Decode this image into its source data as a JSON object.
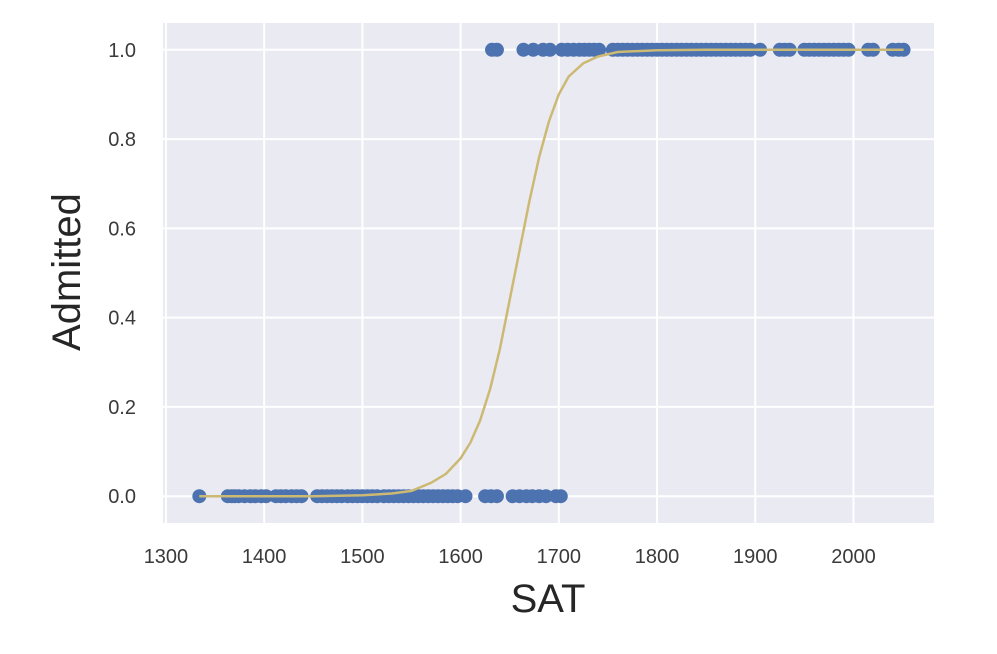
{
  "chart_data": {
    "type": "scatter",
    "title": "",
    "xlabel": "SAT",
    "ylabel": "Admitted",
    "xlim": [
      1297,
      2082
    ],
    "ylim": [
      -0.06,
      1.06
    ],
    "xticks": [
      "1300",
      "1400",
      "1500",
      "1600",
      "1700",
      "1800",
      "1900",
      "2000"
    ],
    "yticks": [
      "0.0",
      "0.2",
      "0.4",
      "0.6",
      "0.8",
      "1.0"
    ],
    "grid": true,
    "background": "#eaeaf2",
    "grid_color": "#ffffff",
    "series": [
      {
        "kind": "scatter",
        "color": "#4c72b0",
        "points": [
          {
            "x": 1334,
            "y": 0
          },
          {
            "x": 1363,
            "y": 0
          },
          {
            "x": 1367,
            "y": 0
          },
          {
            "x": 1370,
            "y": 0
          },
          {
            "x": 1374,
            "y": 0
          },
          {
            "x": 1380,
            "y": 0
          },
          {
            "x": 1386,
            "y": 0
          },
          {
            "x": 1391,
            "y": 0
          },
          {
            "x": 1397,
            "y": 0
          },
          {
            "x": 1402,
            "y": 0
          },
          {
            "x": 1412,
            "y": 0
          },
          {
            "x": 1417,
            "y": 0
          },
          {
            "x": 1422,
            "y": 0
          },
          {
            "x": 1428,
            "y": 0
          },
          {
            "x": 1433,
            "y": 0
          },
          {
            "x": 1438,
            "y": 0
          },
          {
            "x": 1454,
            "y": 0
          },
          {
            "x": 1459,
            "y": 0
          },
          {
            "x": 1464,
            "y": 0
          },
          {
            "x": 1469,
            "y": 0
          },
          {
            "x": 1474,
            "y": 0
          },
          {
            "x": 1479,
            "y": 0
          },
          {
            "x": 1485,
            "y": 0
          },
          {
            "x": 1490,
            "y": 0
          },
          {
            "x": 1495,
            "y": 0
          },
          {
            "x": 1500,
            "y": 0
          },
          {
            "x": 1505,
            "y": 0
          },
          {
            "x": 1510,
            "y": 0
          },
          {
            "x": 1515,
            "y": 0
          },
          {
            "x": 1522,
            "y": 0
          },
          {
            "x": 1527,
            "y": 0
          },
          {
            "x": 1532,
            "y": 0
          },
          {
            "x": 1537,
            "y": 0
          },
          {
            "x": 1542,
            "y": 0
          },
          {
            "x": 1547,
            "y": 0
          },
          {
            "x": 1552,
            "y": 0
          },
          {
            "x": 1557,
            "y": 0
          },
          {
            "x": 1562,
            "y": 0
          },
          {
            "x": 1567,
            "y": 0
          },
          {
            "x": 1572,
            "y": 0
          },
          {
            "x": 1577,
            "y": 0
          },
          {
            "x": 1582,
            "y": 0
          },
          {
            "x": 1587,
            "y": 0
          },
          {
            "x": 1592,
            "y": 0
          },
          {
            "x": 1597,
            "y": 0
          },
          {
            "x": 1605,
            "y": 0
          },
          {
            "x": 1625,
            "y": 0
          },
          {
            "x": 1631,
            "y": 0
          },
          {
            "x": 1637,
            "y": 0
          },
          {
            "x": 1653,
            "y": 0
          },
          {
            "x": 1660,
            "y": 0
          },
          {
            "x": 1667,
            "y": 0
          },
          {
            "x": 1673,
            "y": 0
          },
          {
            "x": 1680,
            "y": 0
          },
          {
            "x": 1687,
            "y": 0
          },
          {
            "x": 1697,
            "y": 0
          },
          {
            "x": 1702,
            "y": 0
          },
          {
            "x": 1632,
            "y": 1
          },
          {
            "x": 1637,
            "y": 1
          },
          {
            "x": 1664,
            "y": 1
          },
          {
            "x": 1674,
            "y": 1
          },
          {
            "x": 1684,
            "y": 1
          },
          {
            "x": 1691,
            "y": 1
          },
          {
            "x": 1703,
            "y": 1
          },
          {
            "x": 1709,
            "y": 1
          },
          {
            "x": 1715,
            "y": 1
          },
          {
            "x": 1721,
            "y": 1
          },
          {
            "x": 1726,
            "y": 1
          },
          {
            "x": 1731,
            "y": 1
          },
          {
            "x": 1736,
            "y": 1
          },
          {
            "x": 1741,
            "y": 1
          },
          {
            "x": 1755,
            "y": 1
          },
          {
            "x": 1760,
            "y": 1
          },
          {
            "x": 1765,
            "y": 1
          },
          {
            "x": 1770,
            "y": 1
          },
          {
            "x": 1775,
            "y": 1
          },
          {
            "x": 1780,
            "y": 1
          },
          {
            "x": 1785,
            "y": 1
          },
          {
            "x": 1790,
            "y": 1
          },
          {
            "x": 1795,
            "y": 1
          },
          {
            "x": 1800,
            "y": 1
          },
          {
            "x": 1805,
            "y": 1
          },
          {
            "x": 1810,
            "y": 1
          },
          {
            "x": 1815,
            "y": 1
          },
          {
            "x": 1820,
            "y": 1
          },
          {
            "x": 1825,
            "y": 1
          },
          {
            "x": 1830,
            "y": 1
          },
          {
            "x": 1835,
            "y": 1
          },
          {
            "x": 1840,
            "y": 1
          },
          {
            "x": 1845,
            "y": 1
          },
          {
            "x": 1850,
            "y": 1
          },
          {
            "x": 1855,
            "y": 1
          },
          {
            "x": 1860,
            "y": 1
          },
          {
            "x": 1865,
            "y": 1
          },
          {
            "x": 1870,
            "y": 1
          },
          {
            "x": 1875,
            "y": 1
          },
          {
            "x": 1880,
            "y": 1
          },
          {
            "x": 1885,
            "y": 1
          },
          {
            "x": 1890,
            "y": 1
          },
          {
            "x": 1895,
            "y": 1
          },
          {
            "x": 1905,
            "y": 1
          },
          {
            "x": 1925,
            "y": 1
          },
          {
            "x": 1930,
            "y": 1
          },
          {
            "x": 1935,
            "y": 1
          },
          {
            "x": 1950,
            "y": 1
          },
          {
            "x": 1955,
            "y": 1
          },
          {
            "x": 1960,
            "y": 1
          },
          {
            "x": 1965,
            "y": 1
          },
          {
            "x": 1970,
            "y": 1
          },
          {
            "x": 1975,
            "y": 1
          },
          {
            "x": 1980,
            "y": 1
          },
          {
            "x": 1985,
            "y": 1
          },
          {
            "x": 1990,
            "y": 1
          },
          {
            "x": 1995,
            "y": 1
          },
          {
            "x": 2015,
            "y": 1
          },
          {
            "x": 2020,
            "y": 1
          },
          {
            "x": 2040,
            "y": 1
          },
          {
            "x": 2046,
            "y": 1
          },
          {
            "x": 2051,
            "y": 1
          }
        ]
      },
      {
        "kind": "line",
        "color": "#ccb974",
        "points": [
          {
            "x": 1334,
            "y": 0.0
          },
          {
            "x": 1450,
            "y": 0.0
          },
          {
            "x": 1500,
            "y": 0.002
          },
          {
            "x": 1530,
            "y": 0.006
          },
          {
            "x": 1550,
            "y": 0.012
          },
          {
            "x": 1570,
            "y": 0.03
          },
          {
            "x": 1585,
            "y": 0.05
          },
          {
            "x": 1600,
            "y": 0.085
          },
          {
            "x": 1610,
            "y": 0.12
          },
          {
            "x": 1620,
            "y": 0.17
          },
          {
            "x": 1630,
            "y": 0.24
          },
          {
            "x": 1640,
            "y": 0.33
          },
          {
            "x": 1650,
            "y": 0.44
          },
          {
            "x": 1660,
            "y": 0.55
          },
          {
            "x": 1670,
            "y": 0.66
          },
          {
            "x": 1680,
            "y": 0.76
          },
          {
            "x": 1690,
            "y": 0.84
          },
          {
            "x": 1700,
            "y": 0.9
          },
          {
            "x": 1710,
            "y": 0.94
          },
          {
            "x": 1725,
            "y": 0.97
          },
          {
            "x": 1740,
            "y": 0.985
          },
          {
            "x": 1760,
            "y": 0.995
          },
          {
            "x": 1800,
            "y": 0.999
          },
          {
            "x": 1850,
            "y": 1.0
          },
          {
            "x": 2051,
            "y": 1.0
          }
        ]
      }
    ]
  }
}
